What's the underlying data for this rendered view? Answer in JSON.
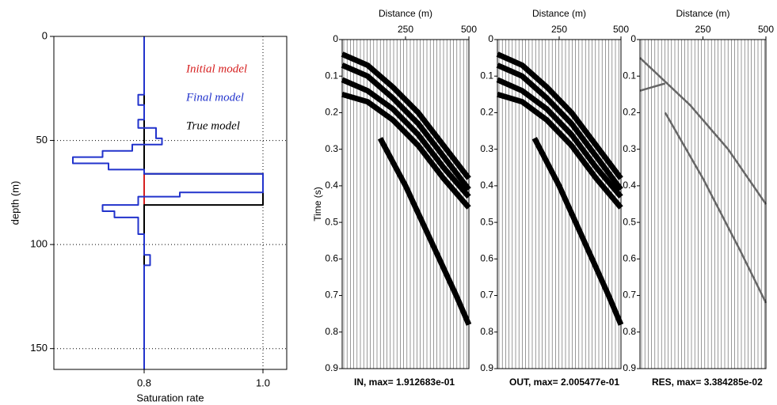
{
  "chart_data": [
    {
      "type": "profile",
      "x_label": "Saturation rate",
      "y_label": "depth (m)",
      "xlim": [
        0.648,
        1.04
      ],
      "ylim": [
        160,
        0
      ],
      "xticks": [
        0.8,
        {
          "value": 1,
          "label": "1.0"
        }
      ],
      "yticks": [
        0,
        50,
        100,
        150
      ],
      "grid": true,
      "series": [
        {
          "name": "Initial model",
          "color": "#d62020",
          "x": [
            0.8,
            0.8
          ],
          "values": [
            0,
            160
          ]
        },
        {
          "name": "Final model",
          "color": "#2233cc",
          "x": [
            0.8,
            0.8,
            0.79,
            0.79,
            0.8,
            0.8,
            0.79,
            0.79,
            0.82,
            0.82,
            0.83,
            0.83,
            0.78,
            0.78,
            0.73,
            0.73,
            0.68,
            0.68,
            0.74,
            0.74,
            0.8,
            0.8,
            1.0,
            1.0,
            0.86,
            0.86,
            0.79,
            0.79,
            0.73,
            0.73,
            0.75,
            0.75,
            0.79,
            0.79,
            0.8,
            0.8,
            0.81,
            0.81,
            0.8,
            0.8
          ],
          "values": [
            0,
            28,
            28,
            33,
            33,
            40,
            40,
            44,
            44,
            49,
            49,
            52,
            52,
            55,
            55,
            58,
            58,
            61,
            61,
            64,
            64,
            66,
            66,
            75,
            75,
            77,
            77,
            81,
            81,
            84,
            84,
            87,
            87,
            95,
            95,
            105,
            105,
            110,
            110,
            160
          ]
        },
        {
          "name": "True model",
          "color": "#000000",
          "x": [
            0.8,
            0.8,
            1.0,
            1.0,
            0.8,
            0.8
          ],
          "values": [
            0,
            66,
            66,
            81,
            81,
            160
          ]
        }
      ]
    },
    {
      "type": "wiggle",
      "x_label": "Distance (m)",
      "y_label": "Time (s)",
      "caption": "IN, max= 1.912683e-01",
      "xlim": [
        0,
        500
      ],
      "ylim": [
        0.9,
        0
      ],
      "xticks": [
        250,
        500
      ],
      "yticks": [
        0,
        0.1,
        0.2,
        0.3,
        0.4,
        0.5,
        0.6,
        0.7,
        0.8,
        0.9
      ],
      "series": [
        {
          "color": "#000000",
          "x": [
            0,
            100,
            200,
            300,
            400,
            500
          ],
          "values": [
            0.04,
            0.07,
            0.13,
            0.2,
            0.29,
            0.38
          ]
        },
        {
          "color": "#000000",
          "x": [
            0,
            100,
            200,
            300,
            400,
            500
          ],
          "values": [
            0.07,
            0.1,
            0.16,
            0.23,
            0.32,
            0.41
          ]
        },
        {
          "color": "#000000",
          "x": [
            0,
            100,
            200,
            300,
            400,
            500
          ],
          "values": [
            0.11,
            0.14,
            0.19,
            0.26,
            0.35,
            0.43
          ]
        },
        {
          "color": "#000000",
          "x": [
            0,
            100,
            200,
            300,
            400,
            500
          ],
          "values": [
            0.15,
            0.17,
            0.22,
            0.29,
            0.38,
            0.46
          ]
        },
        {
          "color": "#000000",
          "x": [
            150,
            250,
            350,
            450,
            500
          ],
          "values": [
            0.27,
            0.4,
            0.55,
            0.7,
            0.78
          ]
        }
      ]
    },
    {
      "type": "wiggle",
      "x_label": "Distance (m)",
      "caption": "OUT, max= 2.005477e-01",
      "xlim": [
        0,
        500
      ],
      "ylim": [
        0.9,
        0
      ],
      "xticks": [
        250,
        500
      ],
      "yticks": [
        0,
        0.1,
        0.2,
        0.3,
        0.4,
        0.5,
        0.6,
        0.7,
        0.8,
        0.9
      ],
      "series": [
        {
          "color": "#000000",
          "x": [
            0,
            100,
            200,
            300,
            400,
            500
          ],
          "values": [
            0.04,
            0.07,
            0.13,
            0.2,
            0.29,
            0.38
          ]
        },
        {
          "color": "#000000",
          "x": [
            0,
            100,
            200,
            300,
            400,
            500
          ],
          "values": [
            0.07,
            0.1,
            0.16,
            0.23,
            0.32,
            0.41
          ]
        },
        {
          "color": "#000000",
          "x": [
            0,
            100,
            200,
            300,
            400,
            500
          ],
          "values": [
            0.11,
            0.14,
            0.19,
            0.26,
            0.35,
            0.43
          ]
        },
        {
          "color": "#000000",
          "x": [
            0,
            100,
            200,
            300,
            400,
            500
          ],
          "values": [
            0.15,
            0.17,
            0.22,
            0.29,
            0.38,
            0.46
          ]
        },
        {
          "color": "#000000",
          "x": [
            150,
            250,
            350,
            450,
            500
          ],
          "values": [
            0.27,
            0.4,
            0.55,
            0.7,
            0.78
          ]
        }
      ]
    },
    {
      "type": "wiggle",
      "x_label": "Distance (m)",
      "caption": "RES, max= 3.384285e-02",
      "xlim": [
        0,
        500
      ],
      "ylim": [
        0.9,
        0
      ],
      "xticks": [
        250,
        500
      ],
      "yticks": [
        0,
        0.1,
        0.2,
        0.3,
        0.4,
        0.5,
        0.6,
        0.7,
        0.8,
        0.9
      ],
      "series": [
        {
          "color": "#666666",
          "x": [
            0,
            50,
            100
          ],
          "values": [
            0.14,
            0.13,
            0.12
          ]
        },
        {
          "color": "#666666",
          "x": [
            0,
            200,
            350,
            500
          ],
          "values": [
            0.05,
            0.18,
            0.3,
            0.45
          ]
        },
        {
          "color": "#666666",
          "x": [
            100,
            250,
            400,
            500
          ],
          "values": [
            0.2,
            0.38,
            0.58,
            0.72
          ]
        }
      ]
    }
  ]
}
